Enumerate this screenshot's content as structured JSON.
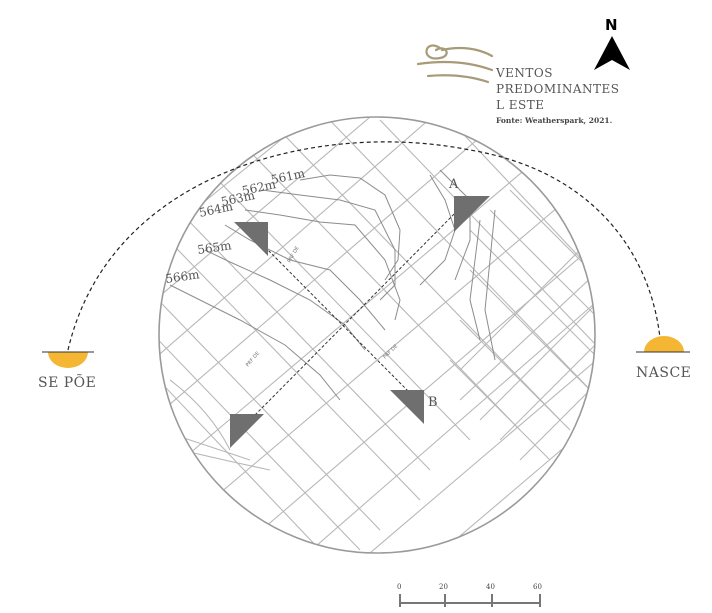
{
  "north": {
    "label": "N"
  },
  "wind_legend": {
    "lines": [
      "VENTOS",
      "PREDOMINANTES",
      "L ESTE"
    ],
    "source": "Fonte: Weatherspark, 2021.",
    "icon": "wind-icon"
  },
  "contours": [
    "561m",
    "562m",
    "563m",
    "564m",
    "565m",
    "566m"
  ],
  "sun": {
    "sunset_label": "SE PÕE",
    "sunrise_label": "NASCE",
    "color": "#f5b733"
  },
  "points": {
    "a": "A",
    "b": "B"
  },
  "street_labels": [
    "PRF DE",
    "PRF DE",
    "PRF DE"
  ],
  "scale_bar": {
    "ticks": [
      "0",
      "20",
      "40",
      "60"
    ]
  },
  "colors": {
    "street": "#b8b8b8",
    "contour": "#8c8c8c",
    "marker": "#6f6f6f",
    "circle": "#9a9a9a"
  }
}
